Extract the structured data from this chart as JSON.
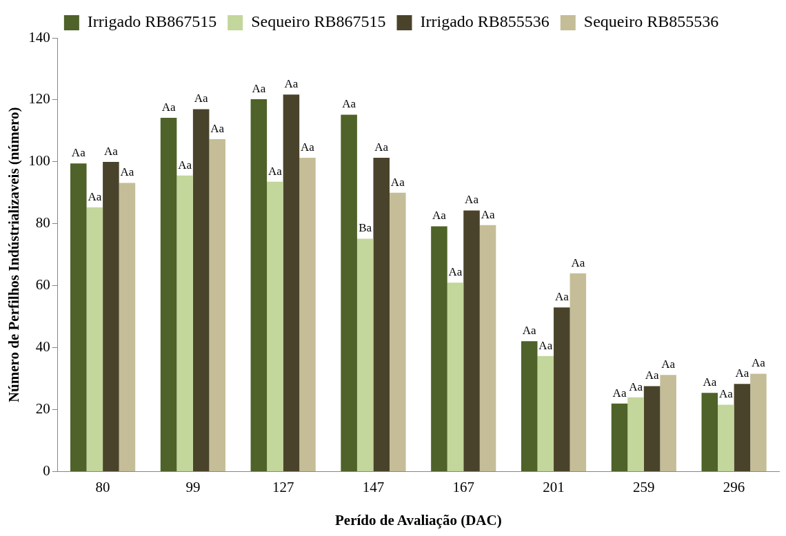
{
  "chart_data": {
    "type": "bar",
    "xlabel": "Perído de Avaliação (DAC)",
    "ylabel": "Número de Perfilhos Indústrializaveis (número)",
    "categories": [
      "80",
      "99",
      "127",
      "147",
      "167",
      "201",
      "259",
      "296"
    ],
    "series": [
      {
        "name": "Irrigado RB867515",
        "color": "#4e6229",
        "values": [
          99.5,
          114.2,
          120.2,
          115.2,
          79.2,
          42.1,
          22,
          25.4
        ],
        "value_labels": [
          "Aa",
          "Aa",
          "Aa",
          "Aa",
          "Aa",
          "Aa",
          "Aa",
          "Aa"
        ]
      },
      {
        "name": "Sequeiro RB867515",
        "color": "#c3d69b",
        "values": [
          85.3,
          95.6,
          93.6,
          75.2,
          61,
          37.3,
          24,
          21.6
        ],
        "value_labels": [
          "Aa",
          "Aa",
          "Aa",
          "Ba",
          "Aa",
          "Aa",
          "Aa",
          "Aa"
        ]
      },
      {
        "name": "Irrigado RB855536",
        "color": "#4a432b",
        "values": [
          100,
          117,
          121.7,
          101.3,
          84.3,
          53,
          27.6,
          28.3
        ],
        "value_labels": [
          "Aa",
          "Aa",
          "Aa",
          "Aa",
          "Aa",
          "Aa",
          "Aa",
          "Aa"
        ]
      },
      {
        "name": "Sequeiro RB855536",
        "color": "#c4bd97",
        "values": [
          93.2,
          107.3,
          101.3,
          90,
          79.6,
          64,
          31.2,
          31.6
        ],
        "value_labels": [
          "Aa",
          "Aa",
          "Aa",
          "Aa",
          "Aa",
          "Aa",
          "Aa",
          "Aa"
        ]
      }
    ],
    "ylim": [
      0,
      140
    ],
    "yticks": [
      0,
      20,
      40,
      60,
      80,
      100,
      120,
      140
    ],
    "grid": false,
    "legend": "top"
  }
}
